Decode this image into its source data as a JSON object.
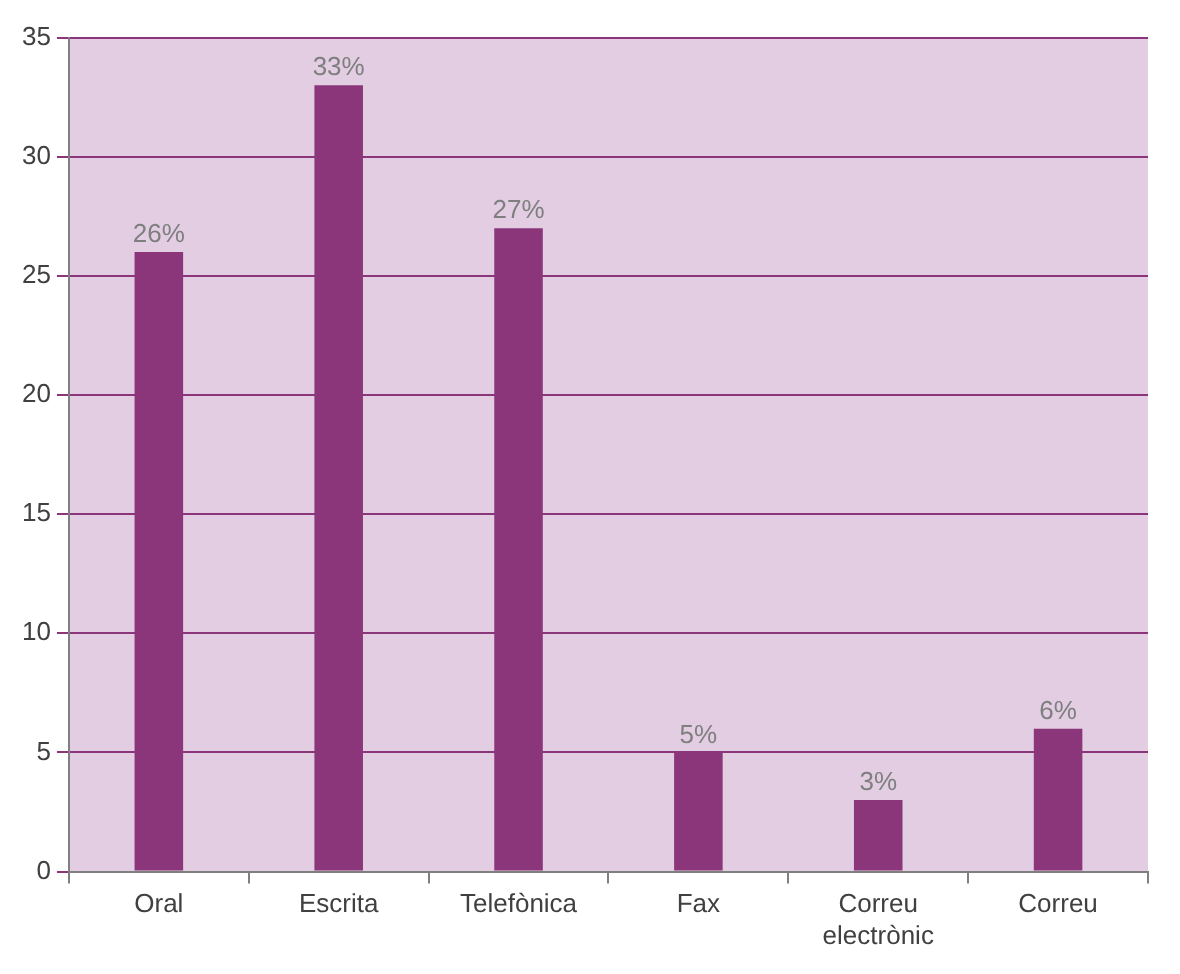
{
  "chart_data": {
    "type": "bar",
    "categories": [
      "Oral",
      "Escrita",
      "Telefònica",
      "Fax",
      "Correu electrònic",
      "Correu"
    ],
    "values": [
      26,
      33,
      27,
      5,
      3,
      6
    ],
    "value_labels": [
      "26%",
      "33%",
      "27%",
      "5%",
      "3%",
      "6%"
    ],
    "color": "#8b367a",
    "ylim": [
      0,
      35
    ],
    "yticks": [
      0,
      5,
      10,
      15,
      20,
      25,
      30,
      35
    ],
    "grid": "y",
    "legend": false
  }
}
